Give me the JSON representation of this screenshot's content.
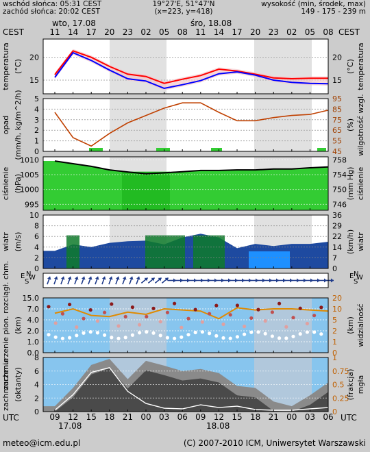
{
  "header": {
    "sunrise": "wschód słońca: 05:31 CEST",
    "sunset": "zachód słońca: 20:02 CEST",
    "coords": "19°27'E, 51°47'N",
    "grid": "(x=223, y=418)",
    "height_label": "wysokość (min, środek, max)",
    "height_values": "149 - 175 - 239 m"
  },
  "top_axis": {
    "zone_left": "CEST",
    "zone_right": "CEST",
    "day1": "wto, 17.08",
    "day2": "śro, 18.08",
    "hours": [
      "11",
      "14",
      "17",
      "20",
      "23",
      "02",
      "05",
      "08",
      "11",
      "14",
      "17",
      "20",
      "23",
      "02",
      "05",
      "08"
    ]
  },
  "bottom_axis": {
    "zone_left": "UTC",
    "zone_right": "UTC",
    "hours": [
      "09",
      "12",
      "15",
      "18",
      "21",
      "00",
      "03",
      "06",
      "09",
      "12",
      "15",
      "18",
      "21",
      "00",
      "03",
      "06"
    ],
    "date1": "17.08",
    "date2": "18.08"
  },
  "footer": {
    "email": "meteo@icm.edu.pl",
    "copyright": "(C) 2007-2010 ICM, Uniwersytet Warszawski"
  },
  "colors": {
    "temp_line": "#ff0000",
    "dew_line": "#0000ff",
    "humidity_line": "#c04000",
    "pressure_fill": "#33cc33",
    "wind_fill": "#1e4aa0",
    "bg_light_blue": "#87c5ee",
    "night_band": "#dcdcdc"
  },
  "chart_data": [
    {
      "type": "line",
      "ylabel": "temperatura (°C)",
      "ylabel_right": "temperatura (°C)",
      "x_hours_utc": [
        9,
        12,
        15,
        18,
        21,
        24,
        27,
        30,
        33,
        36,
        39,
        42,
        45,
        48,
        51,
        54
      ],
      "ylim": [
        12,
        24
      ],
      "yticks": [
        15,
        20
      ],
      "series": [
        {
          "values": [
            16.2,
            21.4,
            20.0,
            18.0,
            16.3,
            15.8,
            14.3,
            15.2,
            16.0,
            17.4,
            17.0,
            16.3,
            15.5,
            15.3,
            15.4,
            15.4
          ]
        },
        {
          "values": [
            15.6,
            21.0,
            19.3,
            17.2,
            15.3,
            14.8,
            13.2,
            14.0,
            14.9,
            16.4,
            16.8,
            16.1,
            15.0,
            14.5,
            14.3,
            14.2
          ]
        }
      ]
    },
    {
      "type": "line",
      "ylabel": "opad (mm/h, kg/m^2/h)",
      "ylabel_right": "wilgotność wzgl. (%)",
      "ylim": [
        0,
        5
      ],
      "yticks": [
        0,
        1,
        2,
        3,
        4,
        5
      ],
      "ylim_right": [
        45,
        95
      ],
      "yticks_right": [
        45,
        55,
        65,
        75,
        85,
        95
      ],
      "series": [
        {
          "values": [
            82,
            58,
            50,
            62,
            72,
            79,
            86,
            91,
            91,
            82,
            74,
            74,
            77,
            79,
            80,
            84
          ]
        }
      ]
    },
    {
      "type": "area",
      "ylabel": "ciśnienie (hPa)",
      "ylabel_right": "ciśnienie (mm Hg)",
      "ylim": [
        993,
        1011
      ],
      "yticks": [
        995,
        1000,
        1005,
        1010
      ],
      "yticks_right": [
        "746",
        "750",
        "754",
        "758"
      ],
      "series": [
        {
          "values": [
            1009.6,
            1008.7,
            1007.8,
            1006.6,
            1005.9,
            1005.3,
            1005.6,
            1006.0,
            1006.4,
            1006.4,
            1006.6,
            1006.6,
            1006.9,
            1006.9,
            1007.3,
            1007.6
          ]
        }
      ]
    },
    {
      "type": "area",
      "ylabel": "wiatr (m/s)",
      "ylabel_right": "wiatr (km/h)",
      "ylim": [
        0,
        10
      ],
      "yticks": [
        0,
        2,
        4,
        6,
        8,
        10
      ],
      "yticks_right": [
        "0",
        "7",
        "14",
        "22",
        "29",
        "36"
      ],
      "series": [
        {
          "values": [
            3.3,
            4.5,
            4.0,
            4.8,
            5.1,
            5.2,
            4.5,
            5.8,
            6.5,
            5.8,
            3.8,
            4.6,
            4.2,
            4.6,
            4.6,
            5.0
          ]
        }
      ]
    },
    {
      "type": "scatter",
      "ylabel": "zachmurzenie pion. rozciągł. chm. (km)",
      "ylabel_right": "widzialność (km)",
      "ylim": [
        0,
        15
      ],
      "yticks": [
        "0.0",
        "1.0",
        "2.0",
        "4.0",
        "7.0",
        "15.0"
      ],
      "yticks_right": [
        "0",
        "1",
        "2",
        "5",
        "10",
        "20"
      ]
    },
    {
      "type": "area",
      "ylabel": "zachmurzenie (oktanty)",
      "ylabel_right": "mgła (frakcja)",
      "ylim": [
        0,
        8
      ],
      "yticks": [
        0,
        2,
        4,
        6,
        8
      ],
      "yticks_right": [
        "0",
        "0.25",
        "0.5",
        "0.75",
        "1"
      ],
      "series": [
        {
          "values": [
            0.8,
            3.5,
            6.9,
            7.8,
            4.8,
            7.5,
            6.8,
            6.0,
            6.3,
            5.7,
            3.8,
            3.5,
            1.5,
            0.8,
            2.4,
            4.3
          ]
        }
      ]
    }
  ]
}
